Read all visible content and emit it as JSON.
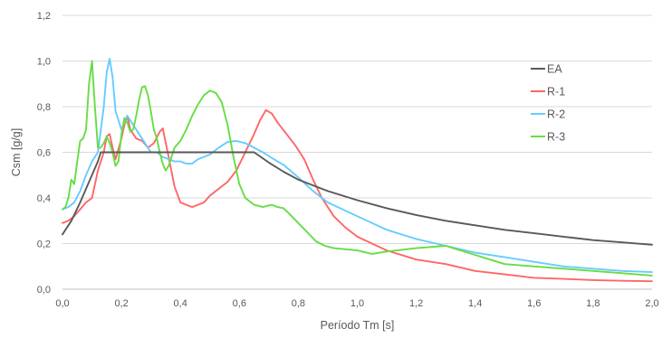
{
  "chart_data": {
    "type": "line",
    "xlabel": "Período Tm [s]",
    "ylabel": "Csm [g/g]",
    "xlim": [
      0,
      2.0
    ],
    "ylim": [
      0,
      1.2
    ],
    "x_ticks": [
      "0,0",
      "0,2",
      "0,4",
      "0,6",
      "0,8",
      "1,0",
      "1,2",
      "1,4",
      "1,6",
      "1,8",
      "2,0"
    ],
    "y_ticks": [
      "0,0",
      "0,2",
      "0,4",
      "0,6",
      "0,8",
      "1,0",
      "1,2"
    ],
    "grid": "horizontal",
    "legend_position": "right",
    "series": [
      {
        "name": "EA",
        "color": "#595959",
        "points": [
          [
            0,
            0.24
          ],
          [
            0.03,
            0.3
          ],
          [
            0.06,
            0.38
          ],
          [
            0.09,
            0.47
          ],
          [
            0.12,
            0.56
          ],
          [
            0.13,
            0.6
          ],
          [
            0.2,
            0.6
          ],
          [
            0.3,
            0.6
          ],
          [
            0.4,
            0.6
          ],
          [
            0.5,
            0.6
          ],
          [
            0.6,
            0.6
          ],
          [
            0.65,
            0.6
          ],
          [
            0.7,
            0.555
          ],
          [
            0.75,
            0.515
          ],
          [
            0.8,
            0.48
          ],
          [
            0.85,
            0.455
          ],
          [
            0.9,
            0.43
          ],
          [
            1.0,
            0.39
          ],
          [
            1.1,
            0.355
          ],
          [
            1.2,
            0.325
          ],
          [
            1.3,
            0.3
          ],
          [
            1.4,
            0.28
          ],
          [
            1.5,
            0.26
          ],
          [
            1.6,
            0.245
          ],
          [
            1.7,
            0.23
          ],
          [
            1.8,
            0.215
          ],
          [
            1.9,
            0.205
          ],
          [
            2.0,
            0.195
          ]
        ]
      },
      {
        "name": "R-1",
        "color": "#ff6666",
        "points": [
          [
            0,
            0.29
          ],
          [
            0.02,
            0.3
          ],
          [
            0.04,
            0.32
          ],
          [
            0.06,
            0.35
          ],
          [
            0.08,
            0.38
          ],
          [
            0.1,
            0.4
          ],
          [
            0.12,
            0.52
          ],
          [
            0.14,
            0.6
          ],
          [
            0.15,
            0.67
          ],
          [
            0.16,
            0.68
          ],
          [
            0.17,
            0.62
          ],
          [
            0.18,
            0.57
          ],
          [
            0.2,
            0.66
          ],
          [
            0.21,
            0.72
          ],
          [
            0.22,
            0.76
          ],
          [
            0.23,
            0.7
          ],
          [
            0.25,
            0.66
          ],
          [
            0.27,
            0.65
          ],
          [
            0.29,
            0.62
          ],
          [
            0.31,
            0.64
          ],
          [
            0.33,
            0.69
          ],
          [
            0.34,
            0.705
          ],
          [
            0.36,
            0.58
          ],
          [
            0.38,
            0.45
          ],
          [
            0.4,
            0.38
          ],
          [
            0.42,
            0.37
          ],
          [
            0.44,
            0.36
          ],
          [
            0.46,
            0.37
          ],
          [
            0.48,
            0.38
          ],
          [
            0.5,
            0.41
          ],
          [
            0.53,
            0.44
          ],
          [
            0.56,
            0.47
          ],
          [
            0.59,
            0.52
          ],
          [
            0.62,
            0.6
          ],
          [
            0.65,
            0.68
          ],
          [
            0.67,
            0.74
          ],
          [
            0.69,
            0.785
          ],
          [
            0.71,
            0.77
          ],
          [
            0.73,
            0.73
          ],
          [
            0.76,
            0.68
          ],
          [
            0.79,
            0.63
          ],
          [
            0.82,
            0.57
          ],
          [
            0.85,
            0.48
          ],
          [
            0.88,
            0.4
          ],
          [
            0.92,
            0.32
          ],
          [
            0.96,
            0.27
          ],
          [
            1.0,
            0.23
          ],
          [
            1.05,
            0.2
          ],
          [
            1.1,
            0.17
          ],
          [
            1.2,
            0.13
          ],
          [
            1.3,
            0.11
          ],
          [
            1.4,
            0.08
          ],
          [
            1.5,
            0.065
          ],
          [
            1.6,
            0.05
          ],
          [
            1.7,
            0.045
          ],
          [
            1.8,
            0.04
          ],
          [
            1.9,
            0.037
          ],
          [
            2.0,
            0.035
          ]
        ]
      },
      {
        "name": "R-2",
        "color": "#66ccff",
        "points": [
          [
            0,
            0.35
          ],
          [
            0.02,
            0.36
          ],
          [
            0.04,
            0.38
          ],
          [
            0.06,
            0.43
          ],
          [
            0.08,
            0.5
          ],
          [
            0.1,
            0.56
          ],
          [
            0.12,
            0.6
          ],
          [
            0.14,
            0.8
          ],
          [
            0.15,
            0.95
          ],
          [
            0.16,
            1.01
          ],
          [
            0.17,
            0.93
          ],
          [
            0.18,
            0.78
          ],
          [
            0.2,
            0.7
          ],
          [
            0.22,
            0.76
          ],
          [
            0.24,
            0.72
          ],
          [
            0.26,
            0.68
          ],
          [
            0.28,
            0.64
          ],
          [
            0.3,
            0.6
          ],
          [
            0.32,
            0.6
          ],
          [
            0.34,
            0.58
          ],
          [
            0.36,
            0.57
          ],
          [
            0.38,
            0.56
          ],
          [
            0.4,
            0.56
          ],
          [
            0.42,
            0.55
          ],
          [
            0.44,
            0.55
          ],
          [
            0.46,
            0.57
          ],
          [
            0.48,
            0.58
          ],
          [
            0.5,
            0.59
          ],
          [
            0.53,
            0.62
          ],
          [
            0.56,
            0.645
          ],
          [
            0.59,
            0.65
          ],
          [
            0.62,
            0.64
          ],
          [
            0.65,
            0.62
          ],
          [
            0.68,
            0.6
          ],
          [
            0.71,
            0.575
          ],
          [
            0.75,
            0.545
          ],
          [
            0.8,
            0.49
          ],
          [
            0.85,
            0.43
          ],
          [
            0.9,
            0.38
          ],
          [
            0.95,
            0.35
          ],
          [
            1.0,
            0.32
          ],
          [
            1.05,
            0.29
          ],
          [
            1.1,
            0.26
          ],
          [
            1.2,
            0.22
          ],
          [
            1.3,
            0.19
          ],
          [
            1.4,
            0.16
          ],
          [
            1.5,
            0.14
          ],
          [
            1.6,
            0.12
          ],
          [
            1.7,
            0.1
          ],
          [
            1.8,
            0.09
          ],
          [
            1.9,
            0.08
          ],
          [
            2.0,
            0.075
          ]
        ]
      },
      {
        "name": "R-3",
        "color": "#66dd44",
        "points": [
          [
            0,
            0.35
          ],
          [
            0.01,
            0.36
          ],
          [
            0.02,
            0.4
          ],
          [
            0.03,
            0.48
          ],
          [
            0.04,
            0.46
          ],
          [
            0.05,
            0.56
          ],
          [
            0.06,
            0.65
          ],
          [
            0.07,
            0.66
          ],
          [
            0.08,
            0.7
          ],
          [
            0.09,
            0.9
          ],
          [
            0.1,
            1.0
          ],
          [
            0.11,
            0.8
          ],
          [
            0.12,
            0.62
          ],
          [
            0.13,
            0.62
          ],
          [
            0.14,
            0.64
          ],
          [
            0.15,
            0.67
          ],
          [
            0.16,
            0.64
          ],
          [
            0.17,
            0.6
          ],
          [
            0.18,
            0.54
          ],
          [
            0.19,
            0.56
          ],
          [
            0.2,
            0.68
          ],
          [
            0.21,
            0.75
          ],
          [
            0.22,
            0.73
          ],
          [
            0.23,
            0.69
          ],
          [
            0.24,
            0.7
          ],
          [
            0.25,
            0.76
          ],
          [
            0.26,
            0.83
          ],
          [
            0.27,
            0.885
          ],
          [
            0.28,
            0.89
          ],
          [
            0.29,
            0.85
          ],
          [
            0.3,
            0.78
          ],
          [
            0.31,
            0.7
          ],
          [
            0.32,
            0.66
          ],
          [
            0.33,
            0.6
          ],
          [
            0.34,
            0.55
          ],
          [
            0.35,
            0.52
          ],
          [
            0.36,
            0.54
          ],
          [
            0.37,
            0.58
          ],
          [
            0.38,
            0.62
          ],
          [
            0.4,
            0.65
          ],
          [
            0.42,
            0.7
          ],
          [
            0.44,
            0.76
          ],
          [
            0.46,
            0.81
          ],
          [
            0.48,
            0.85
          ],
          [
            0.5,
            0.87
          ],
          [
            0.52,
            0.86
          ],
          [
            0.54,
            0.82
          ],
          [
            0.56,
            0.72
          ],
          [
            0.58,
            0.58
          ],
          [
            0.6,
            0.46
          ],
          [
            0.62,
            0.4
          ],
          [
            0.65,
            0.37
          ],
          [
            0.68,
            0.36
          ],
          [
            0.71,
            0.37
          ],
          [
            0.73,
            0.36
          ],
          [
            0.75,
            0.355
          ],
          [
            0.77,
            0.33
          ],
          [
            0.8,
            0.29
          ],
          [
            0.83,
            0.25
          ],
          [
            0.86,
            0.21
          ],
          [
            0.89,
            0.19
          ],
          [
            0.92,
            0.18
          ],
          [
            0.96,
            0.175
          ],
          [
            1.0,
            0.17
          ],
          [
            1.05,
            0.155
          ],
          [
            1.1,
            0.165
          ],
          [
            1.2,
            0.18
          ],
          [
            1.3,
            0.19
          ],
          [
            1.4,
            0.15
          ],
          [
            1.45,
            0.13
          ],
          [
            1.5,
            0.11
          ],
          [
            1.6,
            0.1
          ],
          [
            1.7,
            0.09
          ],
          [
            1.8,
            0.08
          ],
          [
            1.9,
            0.07
          ],
          [
            2.0,
            0.06
          ]
        ]
      }
    ]
  }
}
